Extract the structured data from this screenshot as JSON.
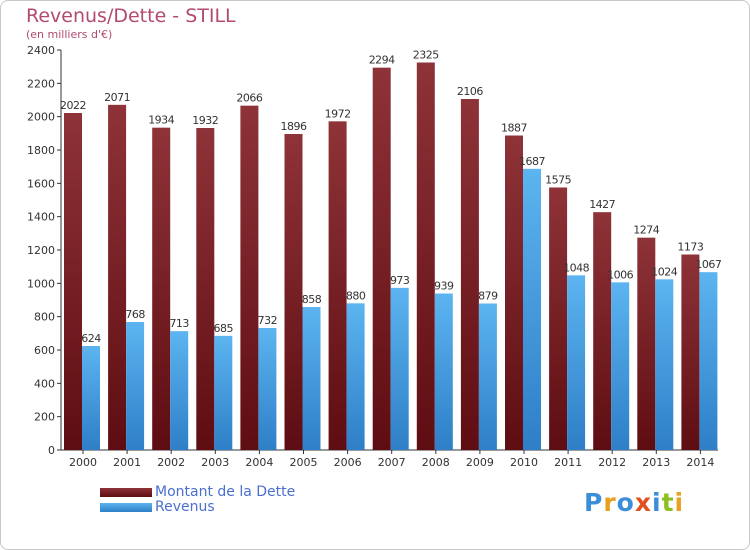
{
  "chart_data": {
    "type": "bar",
    "title": "Revenus/Dette - STILL",
    "subtitle": "(en milliers d'€)",
    "categories": [
      "2000",
      "2001",
      "2002",
      "2003",
      "2004",
      "2005",
      "2006",
      "2007",
      "2008",
      "2009",
      "2010",
      "2011",
      "2012",
      "2013",
      "2014"
    ],
    "series": [
      {
        "name": "Montant de la Dette",
        "color": "#7a1f24",
        "values": [
          2022,
          2071,
          1934,
          1932,
          2066,
          1896,
          1972,
          2294,
          2325,
          2106,
          1887,
          1575,
          1427,
          1274,
          1173
        ]
      },
      {
        "name": "Revenus",
        "color": "#4aa3e8",
        "values": [
          624,
          768,
          713,
          685,
          732,
          858,
          880,
          973,
          939,
          879,
          1687,
          1048,
          1006,
          1024,
          1067
        ]
      }
    ],
    "ylim": [
      0,
      2400
    ],
    "yticks": [
      0,
      200,
      400,
      600,
      800,
      1000,
      1200,
      1400,
      1600,
      1800,
      2000,
      2200,
      2400
    ],
    "grid": false,
    "legend": "bottom-left"
  },
  "logo": {
    "text": "Proxiti"
  }
}
